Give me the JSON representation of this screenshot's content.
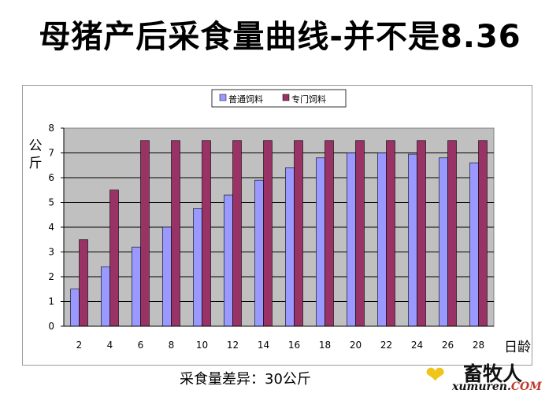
{
  "title": "母猪产后采食量曲线-并不是8.36",
  "footnote": "采食量差异：30公斤",
  "watermark": {
    "name": "畜牧人",
    "url_main": "xumuren.",
    "url_com": "COM"
  },
  "chart_data": {
    "type": "bar",
    "categories": [
      "2",
      "4",
      "6",
      "8",
      "10",
      "12",
      "14",
      "16",
      "18",
      "20",
      "22",
      "24",
      "26",
      "28"
    ],
    "series": [
      {
        "name": "普通饲料",
        "color": "#9999ff",
        "values": [
          1.5,
          2.4,
          3.2,
          4.0,
          4.75,
          5.3,
          5.9,
          6.4,
          6.8,
          7.0,
          7.0,
          6.95,
          6.8,
          6.6
        ]
      },
      {
        "name": "专门饲料",
        "color": "#993366",
        "values": [
          3.5,
          5.5,
          7.5,
          7.5,
          7.5,
          7.5,
          7.5,
          7.5,
          7.5,
          7.5,
          7.5,
          7.5,
          7.5,
          7.5
        ]
      }
    ],
    "ylabel": "公斤",
    "xlabel": "日龄",
    "ylim": [
      0,
      8
    ],
    "yticks": [
      0,
      1,
      2,
      3,
      4,
      5,
      6,
      7,
      8
    ],
    "grid": true,
    "plot_background": "#c0c0c0",
    "legend_position": "top-center"
  }
}
